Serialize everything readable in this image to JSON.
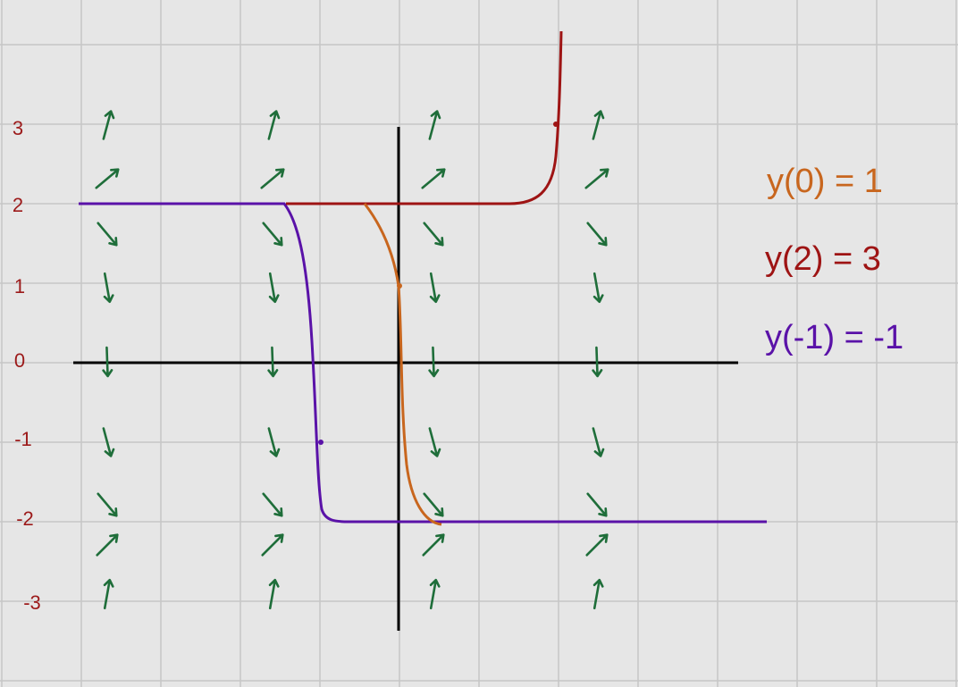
{
  "axis_labels": [
    "3",
    "2",
    "1",
    "0",
    "-1",
    "-2",
    "-3"
  ],
  "annotations": [
    "y(0) = 1",
    "y(2) = 3",
    "y(-1) = -1"
  ]
}
